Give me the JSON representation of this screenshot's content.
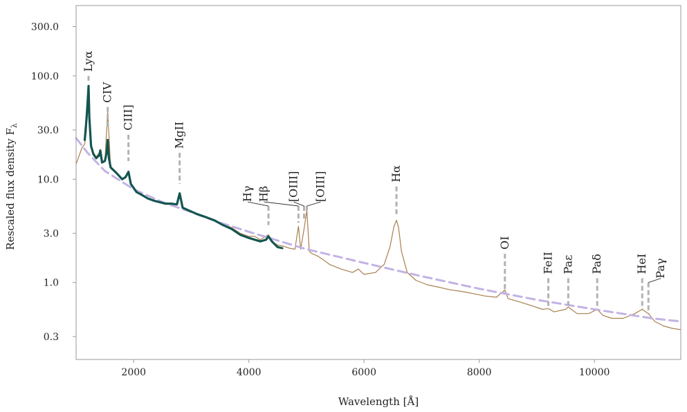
{
  "chart_data": {
    "type": "line",
    "xlabel": "Wavelength [Å]",
    "ylabel": "Rescaled flux density F",
    "ylabel_subscript": "λ",
    "xlim": [
      1000,
      11500
    ],
    "ylim": [
      0.18,
      480
    ],
    "yscale": "log",
    "grid": false,
    "xticks": [
      2000,
      4000,
      6000,
      8000,
      10000
    ],
    "xtick_labels": [
      "2000",
      "4000",
      "6000",
      "8000",
      "10000"
    ],
    "yticks": [
      0.3,
      1.0,
      3.0,
      10.0,
      30.0,
      100.0,
      300.0
    ],
    "ytick_labels": [
      "0.3",
      "1.0",
      "3.0",
      "10.0",
      "30.0",
      "100.0",
      "300.0"
    ],
    "colors": {
      "composite": "#a87f4c",
      "uv_composite": "#145550",
      "continuum": "#c2b2e4",
      "line_markers": "#b2b2b2",
      "axes": "#9a9a9a"
    },
    "series": [
      {
        "role": "composite",
        "x": [
          1000,
          1100,
          1150,
          1180,
          1200,
          1216,
          1230,
          1260,
          1300,
          1350,
          1400,
          1450,
          1500,
          1549,
          1600,
          1700,
          1800,
          1860,
          1909,
          1950,
          2050,
          2150,
          2250,
          2350,
          2450,
          2550,
          2650,
          2750,
          2798,
          2850,
          2950,
          3100,
          3250,
          3400,
          3550,
          3700,
          3850,
          4000,
          4100,
          4200,
          4340,
          4400,
          4500,
          4600,
          4700,
          4800,
          4861,
          4900,
          4959,
          5007,
          5050,
          5100,
          5200,
          5300,
          5400,
          5600,
          5800,
          5900,
          6000,
          6200,
          6350,
          6450,
          6520,
          6563,
          6600,
          6650,
          6750,
          6900,
          7100,
          7300,
          7500,
          7700,
          7900,
          8100,
          8300,
          8446,
          8500,
          8700,
          8900,
          9100,
          9200,
          9300,
          9500,
          9546,
          9700,
          9900,
          10049,
          10150,
          10300,
          10500,
          10700,
          10830,
          10938,
          11050,
          11200,
          11350,
          11500
        ],
        "y": [
          14.0,
          20.0,
          22.0,
          30.0,
          55.0,
          75.0,
          40.0,
          22.0,
          18.0,
          16.5,
          18.0,
          14.5,
          15.0,
          45.0,
          13.0,
          11.5,
          10.0,
          10.5,
          11.5,
          9.0,
          7.5,
          7.0,
          6.5,
          6.2,
          6.0,
          5.8,
          5.8,
          5.7,
          7.0,
          5.3,
          5.0,
          4.6,
          4.3,
          4.0,
          3.7,
          3.4,
          3.0,
          2.8,
          2.8,
          2.6,
          2.9,
          2.5,
          2.3,
          2.25,
          2.15,
          2.1,
          3.5,
          2.1,
          3.3,
          5.0,
          2.0,
          1.9,
          1.8,
          1.65,
          1.5,
          1.35,
          1.25,
          1.35,
          1.2,
          1.25,
          1.5,
          2.2,
          3.5,
          4.0,
          3.4,
          2.0,
          1.25,
          1.05,
          0.95,
          0.9,
          0.85,
          0.82,
          0.78,
          0.74,
          0.72,
          0.85,
          0.7,
          0.65,
          0.6,
          0.55,
          0.56,
          0.52,
          0.55,
          0.58,
          0.5,
          0.5,
          0.55,
          0.48,
          0.45,
          0.45,
          0.5,
          0.55,
          0.5,
          0.42,
          0.38,
          0.36,
          0.35
        ]
      },
      {
        "role": "uv_composite",
        "x": [
          1150,
          1180,
          1200,
          1216,
          1230,
          1260,
          1300,
          1350,
          1400,
          1420,
          1450,
          1500,
          1530,
          1549,
          1570,
          1600,
          1700,
          1800,
          1860,
          1909,
          1950,
          2050,
          2150,
          2250,
          2350,
          2450,
          2550,
          2650,
          2750,
          2798,
          2850,
          2950,
          3100,
          3250,
          3400,
          3550,
          3700,
          3850,
          4000,
          4100,
          4200,
          4300,
          4340,
          4400,
          4500,
          4580
        ],
        "y": [
          24.0,
          38.0,
          55.0,
          80.0,
          40.0,
          21.0,
          17.5,
          16.0,
          17.0,
          19.0,
          14.5,
          15.0,
          18.0,
          24.0,
          16.0,
          13.0,
          11.5,
          10.0,
          10.5,
          11.8,
          9.0,
          7.5,
          7.0,
          6.5,
          6.2,
          6.0,
          5.8,
          5.8,
          5.7,
          7.3,
          5.3,
          5.0,
          4.6,
          4.3,
          4.0,
          3.6,
          3.3,
          2.9,
          2.7,
          2.6,
          2.5,
          2.6,
          2.8,
          2.5,
          2.2,
          2.15
        ]
      },
      {
        "role": "continuum",
        "x": [
          1000,
          1200,
          1500,
          2000,
          2500,
          3000,
          3500,
          4000,
          5000,
          6000,
          7000,
          8000,
          9000,
          10000,
          11000,
          11500
        ],
        "y": [
          25.0,
          18.0,
          12.0,
          8.0,
          6.0,
          4.8,
          3.8,
          3.1,
          2.1,
          1.55,
          1.15,
          0.87,
          0.68,
          0.55,
          0.45,
          0.42
        ]
      }
    ],
    "lines": [
      {
        "label": "Lyα",
        "x": 1216,
        "y_top": 100.0,
        "y_bottom": 85.0,
        "label_dx": 0
      },
      {
        "label": "CIV",
        "x": 1549,
        "y_top": 50.0,
        "y_bottom": 30.0,
        "label_dx": 0
      },
      {
        "label": "CIII]",
        "x": 1909,
        "y_top": 27.0,
        "y_bottom": 15.0,
        "label_dx": 0
      },
      {
        "label": "MgII",
        "x": 2798,
        "y_top": 18.0,
        "y_bottom": 9.0,
        "label_dx": 0
      },
      {
        "label": "Hγ",
        "x": 4340,
        "y_top": 5.5,
        "y_bottom": 3.6,
        "label_dx": -30
      },
      {
        "label": "Hβ",
        "x": 4861,
        "y_top": 5.5,
        "y_bottom": 3.8,
        "label_dx": -50
      },
      {
        "label": "[OIII]",
        "x": 4959,
        "y_top": 5.5,
        "y_bottom": 4.0,
        "label_dx": -15
      },
      {
        "label": "[OIII]",
        "x": 5007,
        "y_top": 5.5,
        "y_bottom": 5.0,
        "label_dx": 20
      },
      {
        "label": "Hα",
        "x": 6563,
        "y_top": 8.5,
        "y_bottom": 4.5,
        "label_dx": 0
      },
      {
        "label": "OI",
        "x": 8446,
        "y_top": 1.9,
        "y_bottom": 0.8,
        "label_dx": 0
      },
      {
        "label": "FeII",
        "x": 9200,
        "y_top": 1.1,
        "y_bottom": 0.55,
        "label_dx": 0
      },
      {
        "label": "Paε",
        "x": 9546,
        "y_top": 1.1,
        "y_bottom": 0.58,
        "label_dx": 0
      },
      {
        "label": "Paδ",
        "x": 10049,
        "y_top": 1.1,
        "y_bottom": 0.55,
        "label_dx": 0
      },
      {
        "label": "HeI",
        "x": 10830,
        "y_top": 1.1,
        "y_bottom": 0.55,
        "label_dx": 0
      },
      {
        "label": "Paγ",
        "x": 10938,
        "y_top": 1.0,
        "y_bottom": 0.5,
        "label_dx": 18
      }
    ]
  }
}
